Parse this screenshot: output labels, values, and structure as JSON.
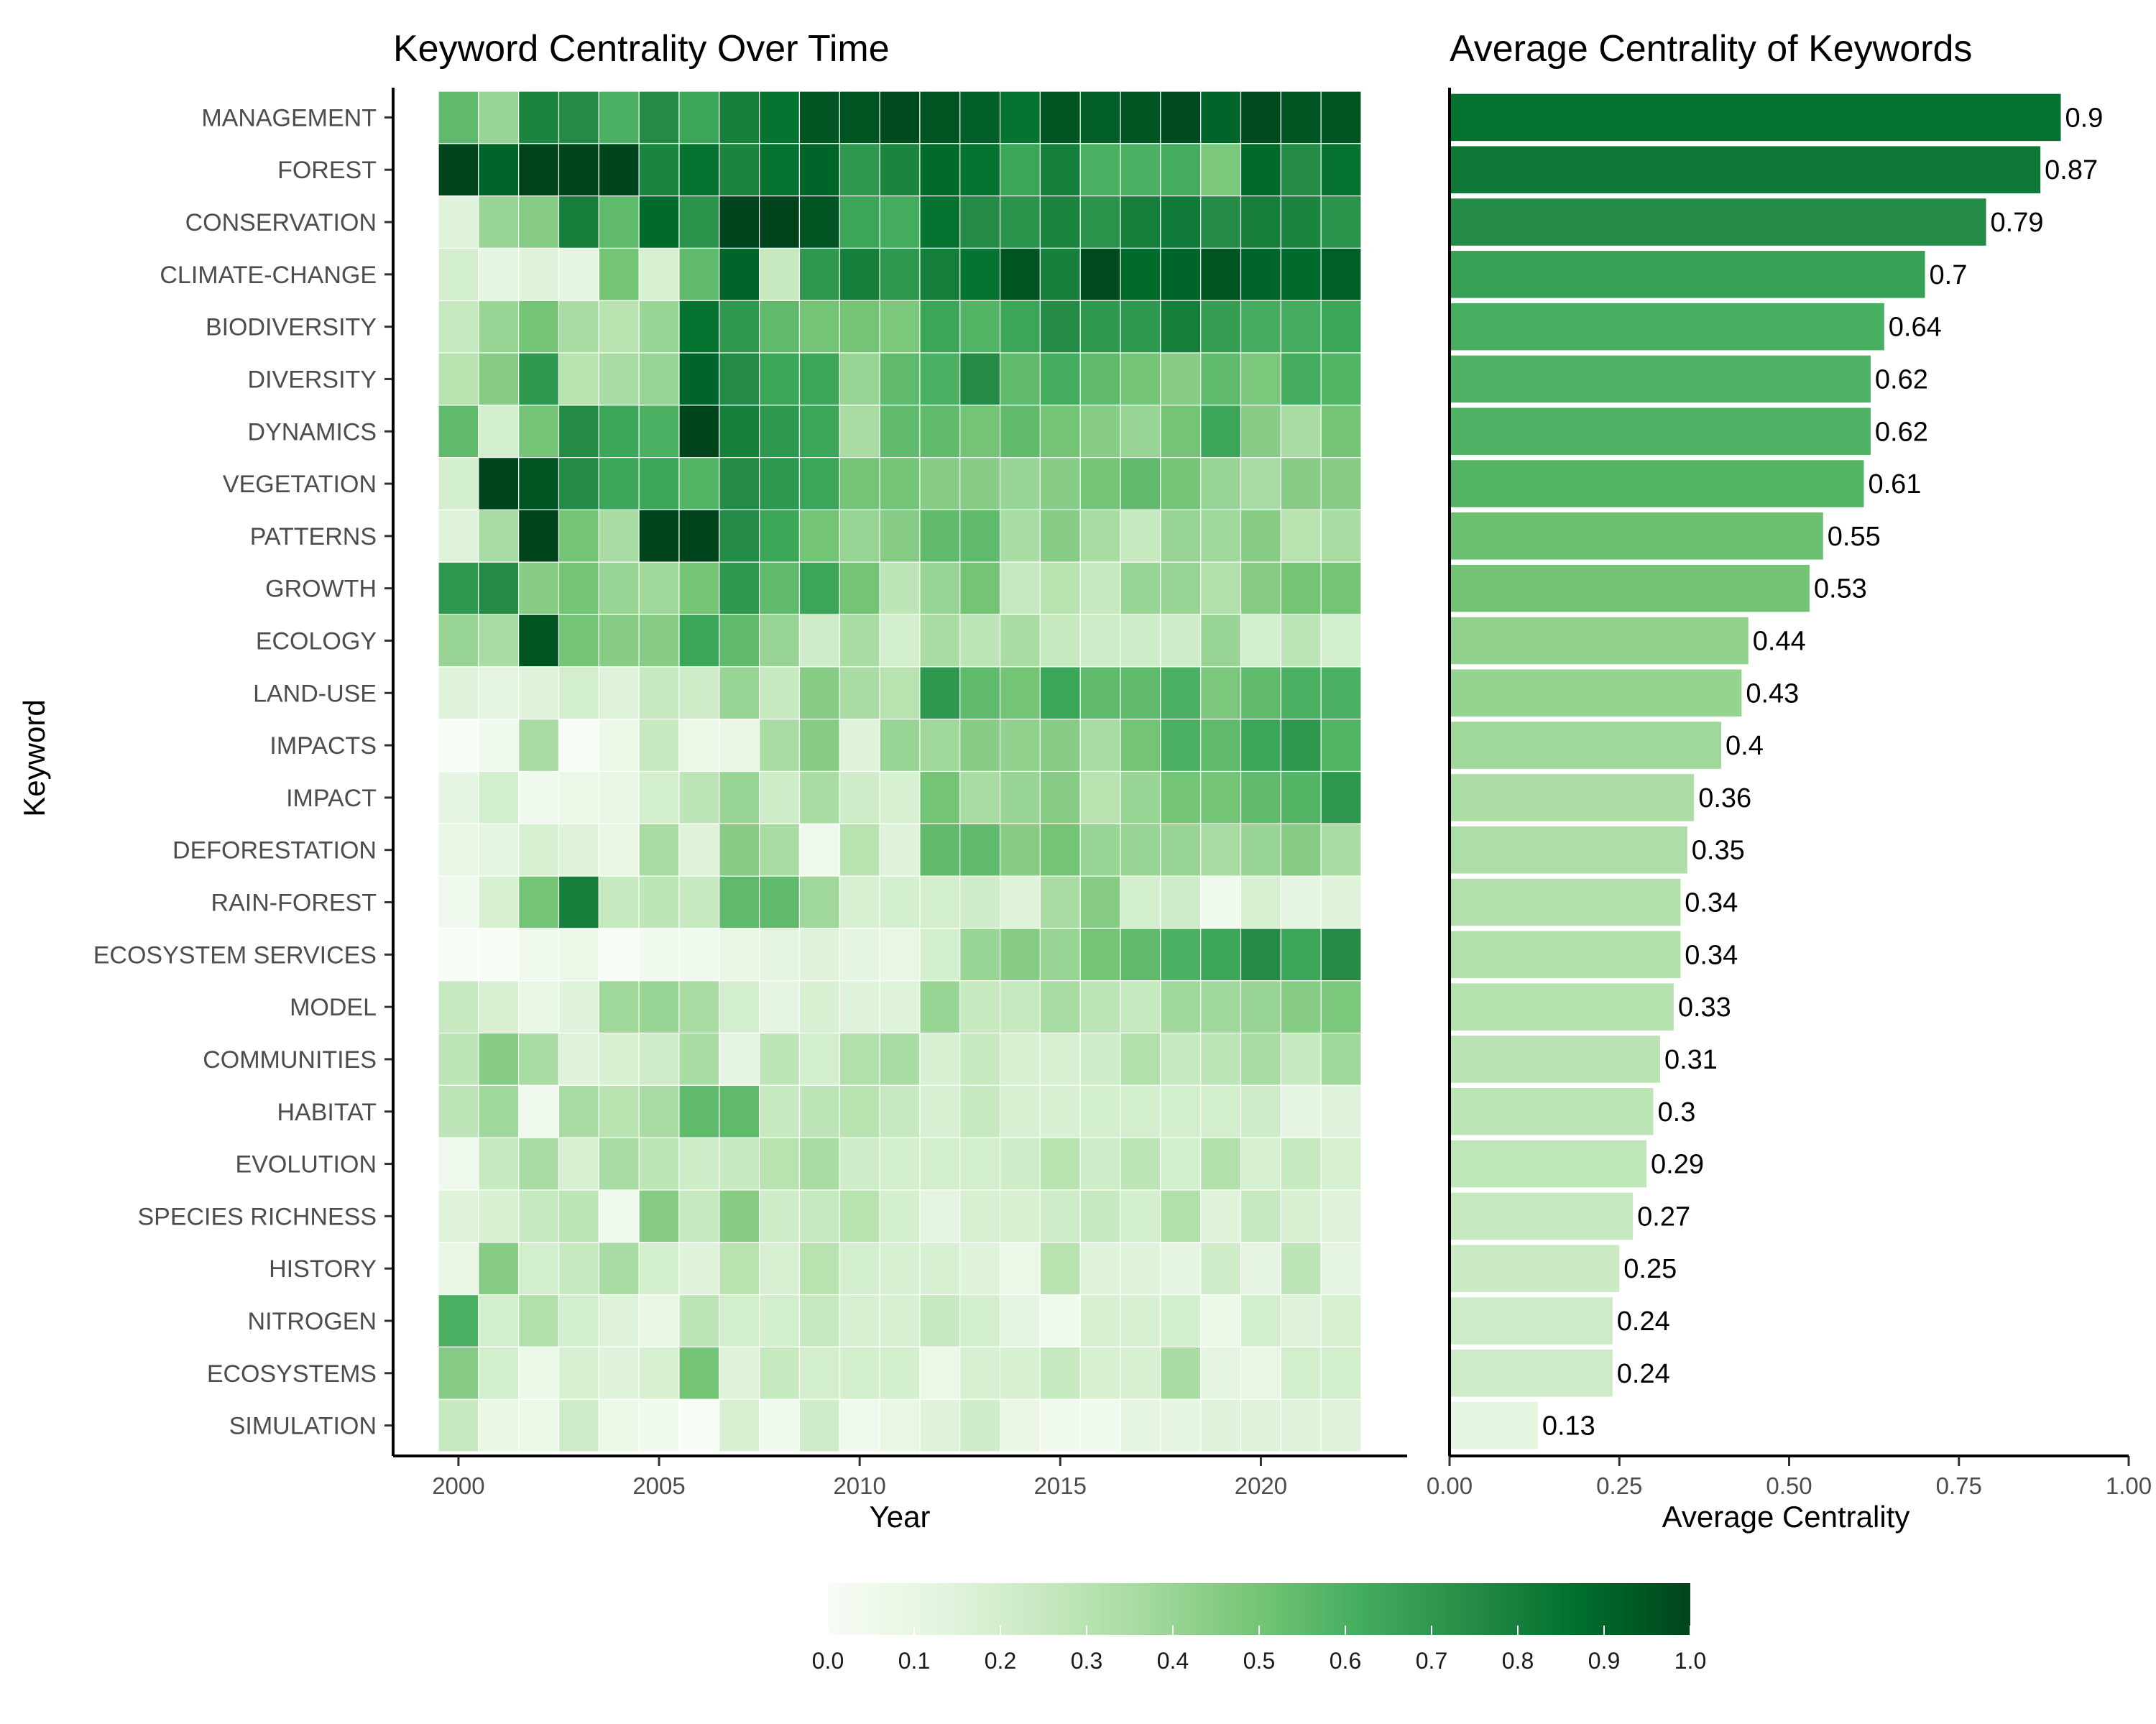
{
  "chart_data": [
    {
      "type": "heatmap",
      "title": "Keyword Centrality Over Time",
      "xlabel": "Year",
      "ylabel": "Keyword",
      "x": [
        2000,
        2001,
        2002,
        2003,
        2004,
        2005,
        2006,
        2007,
        2008,
        2009,
        2010,
        2011,
        2012,
        2013,
        2014,
        2015,
        2016,
        2017,
        2018,
        2019,
        2020,
        2021,
        2022
      ],
      "x_ticks": [
        2000,
        2005,
        2010,
        2015,
        2020
      ],
      "y": [
        "MANAGEMENT",
        "FOREST",
        "CONSERVATION",
        "CLIMATE-CHANGE",
        "BIODIVERSITY",
        "DIVERSITY",
        "DYNAMICS",
        "VEGETATION",
        "PATTERNS",
        "GROWTH",
        "ECOLOGY",
        "LAND-USE",
        "IMPACTS",
        "IMPACT",
        "DEFORESTATION",
        "RAIN-FOREST",
        "ECOSYSTEM SERVICES",
        "MODEL",
        "COMMUNITIES",
        "HABITAT",
        "EVOLUTION",
        "SPECIES RICHNESS",
        "HISTORY",
        "NITROGEN",
        "ECOSYSTEMS",
        "SIMULATION"
      ],
      "values": [
        [
          0.55,
          0.4,
          0.78,
          0.75,
          0.6,
          0.75,
          0.65,
          0.8,
          0.85,
          0.95,
          0.95,
          0.98,
          0.95,
          0.92,
          0.85,
          0.95,
          0.92,
          0.95,
          0.98,
          0.9,
          0.98,
          0.95,
          0.95
        ],
        [
          1.0,
          0.9,
          1.0,
          1.0,
          1.0,
          0.78,
          0.85,
          0.78,
          0.85,
          0.9,
          0.7,
          0.78,
          0.88,
          0.85,
          0.65,
          0.8,
          0.6,
          0.6,
          0.62,
          0.48,
          0.88,
          0.75,
          0.85
        ],
        [
          0.15,
          0.4,
          0.45,
          0.8,
          0.55,
          0.88,
          0.72,
          1.0,
          1.0,
          0.95,
          0.65,
          0.62,
          0.85,
          0.75,
          0.72,
          0.78,
          0.72,
          0.8,
          0.82,
          0.75,
          0.8,
          0.78,
          0.72
        ],
        [
          0.2,
          0.12,
          0.15,
          0.12,
          0.5,
          0.18,
          0.55,
          0.9,
          0.25,
          0.7,
          0.8,
          0.7,
          0.8,
          0.85,
          0.95,
          0.8,
          0.98,
          0.88,
          0.9,
          0.95,
          0.9,
          0.88,
          0.92
        ],
        [
          0.25,
          0.4,
          0.5,
          0.35,
          0.3,
          0.4,
          0.85,
          0.7,
          0.55,
          0.5,
          0.5,
          0.48,
          0.65,
          0.58,
          0.65,
          0.75,
          0.7,
          0.7,
          0.8,
          0.68,
          0.62,
          0.62,
          0.65
        ],
        [
          0.3,
          0.45,
          0.7,
          0.3,
          0.35,
          0.4,
          0.9,
          0.75,
          0.65,
          0.65,
          0.4,
          0.55,
          0.6,
          0.75,
          0.55,
          0.62,
          0.55,
          0.5,
          0.45,
          0.55,
          0.48,
          0.62,
          0.58
        ],
        [
          0.55,
          0.2,
          0.5,
          0.75,
          0.65,
          0.6,
          1.0,
          0.8,
          0.7,
          0.65,
          0.35,
          0.55,
          0.55,
          0.5,
          0.55,
          0.5,
          0.45,
          0.4,
          0.5,
          0.65,
          0.45,
          0.35,
          0.5
        ],
        [
          0.2,
          1.0,
          0.95,
          0.75,
          0.65,
          0.65,
          0.58,
          0.75,
          0.7,
          0.65,
          0.5,
          0.5,
          0.45,
          0.45,
          0.4,
          0.45,
          0.5,
          0.55,
          0.5,
          0.4,
          0.35,
          0.45,
          0.45
        ],
        [
          0.15,
          0.35,
          1.0,
          0.5,
          0.35,
          1.0,
          1.0,
          0.75,
          0.65,
          0.5,
          0.4,
          0.45,
          0.55,
          0.55,
          0.35,
          0.45,
          0.35,
          0.25,
          0.4,
          0.38,
          0.45,
          0.3,
          0.35
        ],
        [
          0.7,
          0.75,
          0.45,
          0.5,
          0.4,
          0.38,
          0.5,
          0.7,
          0.55,
          0.65,
          0.5,
          0.28,
          0.4,
          0.5,
          0.25,
          0.3,
          0.25,
          0.4,
          0.4,
          0.32,
          0.45,
          0.5,
          0.5
        ],
        [
          0.4,
          0.35,
          0.95,
          0.5,
          0.45,
          0.45,
          0.65,
          0.55,
          0.4,
          0.22,
          0.35,
          0.2,
          0.35,
          0.28,
          0.35,
          0.25,
          0.22,
          0.22,
          0.22,
          0.4,
          0.2,
          0.28,
          0.2
        ],
        [
          0.15,
          0.12,
          0.15,
          0.2,
          0.15,
          0.25,
          0.22,
          0.4,
          0.25,
          0.45,
          0.35,
          0.3,
          0.7,
          0.55,
          0.5,
          0.65,
          0.55,
          0.55,
          0.6,
          0.48,
          0.55,
          0.6,
          0.6
        ],
        [
          0.0,
          0.05,
          0.35,
          0.0,
          0.08,
          0.25,
          0.08,
          0.1,
          0.35,
          0.45,
          0.15,
          0.4,
          0.38,
          0.45,
          0.42,
          0.45,
          0.35,
          0.5,
          0.6,
          0.55,
          0.65,
          0.7,
          0.58
        ],
        [
          0.12,
          0.2,
          0.05,
          0.08,
          0.1,
          0.2,
          0.28,
          0.4,
          0.22,
          0.35,
          0.22,
          0.18,
          0.5,
          0.35,
          0.4,
          0.45,
          0.3,
          0.4,
          0.5,
          0.5,
          0.55,
          0.58,
          0.7
        ],
        [
          0.1,
          0.12,
          0.18,
          0.15,
          0.1,
          0.35,
          0.15,
          0.45,
          0.35,
          0.05,
          0.3,
          0.15,
          0.55,
          0.55,
          0.45,
          0.5,
          0.4,
          0.4,
          0.4,
          0.35,
          0.4,
          0.45,
          0.35
        ],
        [
          0.05,
          0.18,
          0.5,
          0.8,
          0.25,
          0.28,
          0.25,
          0.55,
          0.55,
          0.38,
          0.18,
          0.2,
          0.2,
          0.22,
          0.15,
          0.35,
          0.45,
          0.2,
          0.22,
          0.05,
          0.18,
          0.12,
          0.15
        ],
        [
          0.0,
          0.0,
          0.05,
          0.08,
          0.0,
          0.05,
          0.05,
          0.1,
          0.12,
          0.15,
          0.12,
          0.1,
          0.2,
          0.4,
          0.45,
          0.4,
          0.5,
          0.55,
          0.6,
          0.65,
          0.75,
          0.65,
          0.75
        ],
        [
          0.25,
          0.18,
          0.1,
          0.15,
          0.38,
          0.4,
          0.35,
          0.2,
          0.12,
          0.18,
          0.15,
          0.15,
          0.4,
          0.25,
          0.25,
          0.35,
          0.28,
          0.25,
          0.38,
          0.38,
          0.4,
          0.45,
          0.48
        ],
        [
          0.28,
          0.45,
          0.35,
          0.15,
          0.18,
          0.22,
          0.35,
          0.12,
          0.28,
          0.2,
          0.32,
          0.35,
          0.18,
          0.25,
          0.18,
          0.18,
          0.22,
          0.32,
          0.25,
          0.28,
          0.35,
          0.25,
          0.38
        ],
        [
          0.28,
          0.38,
          0.05,
          0.35,
          0.3,
          0.35,
          0.55,
          0.55,
          0.25,
          0.28,
          0.3,
          0.25,
          0.18,
          0.25,
          0.18,
          0.18,
          0.2,
          0.2,
          0.2,
          0.2,
          0.22,
          0.12,
          0.15
        ],
        [
          0.05,
          0.25,
          0.35,
          0.18,
          0.35,
          0.28,
          0.22,
          0.25,
          0.3,
          0.35,
          0.22,
          0.2,
          0.2,
          0.2,
          0.22,
          0.3,
          0.22,
          0.28,
          0.2,
          0.32,
          0.18,
          0.25,
          0.18
        ],
        [
          0.15,
          0.18,
          0.25,
          0.28,
          0.05,
          0.45,
          0.25,
          0.45,
          0.22,
          0.25,
          0.3,
          0.2,
          0.12,
          0.18,
          0.18,
          0.22,
          0.25,
          0.2,
          0.32,
          0.15,
          0.25,
          0.18,
          0.15
        ],
        [
          0.1,
          0.45,
          0.2,
          0.25,
          0.35,
          0.2,
          0.15,
          0.3,
          0.18,
          0.3,
          0.2,
          0.18,
          0.18,
          0.15,
          0.08,
          0.3,
          0.15,
          0.15,
          0.12,
          0.22,
          0.12,
          0.28,
          0.12
        ],
        [
          0.6,
          0.2,
          0.32,
          0.2,
          0.15,
          0.1,
          0.28,
          0.2,
          0.2,
          0.25,
          0.18,
          0.18,
          0.25,
          0.2,
          0.12,
          0.05,
          0.18,
          0.18,
          0.2,
          0.08,
          0.2,
          0.15,
          0.18
        ],
        [
          0.45,
          0.2,
          0.08,
          0.18,
          0.15,
          0.18,
          0.5,
          0.15,
          0.25,
          0.2,
          0.2,
          0.2,
          0.08,
          0.18,
          0.18,
          0.25,
          0.18,
          0.18,
          0.35,
          0.12,
          0.1,
          0.2,
          0.2
        ],
        [
          0.25,
          0.1,
          0.08,
          0.22,
          0.08,
          0.05,
          0.0,
          0.18,
          0.05,
          0.22,
          0.05,
          0.1,
          0.15,
          0.22,
          0.1,
          0.05,
          0.05,
          0.12,
          0.12,
          0.15,
          0.15,
          0.15,
          0.15
        ]
      ],
      "colorbar": {
        "min": 0.0,
        "max": 1.0,
        "ticks": [
          "0.0",
          "0.1",
          "0.2",
          "0.3",
          "0.4",
          "0.5",
          "0.6",
          "0.7",
          "0.8",
          "0.9",
          "1.0"
        ],
        "placement": "bottom"
      },
      "colors": {
        "low": "#f7fcf5",
        "mid": "#a1d99b",
        "high": "#00441b"
      },
      "grid": false
    },
    {
      "type": "bar",
      "orientation": "horizontal",
      "title": "Average Centrality of Keywords",
      "xlabel": "Average Centrality",
      "ylabel": "",
      "categories": [
        "MANAGEMENT",
        "FOREST",
        "CONSERVATION",
        "CLIMATE-CHANGE",
        "BIODIVERSITY",
        "DIVERSITY",
        "DYNAMICS",
        "VEGETATION",
        "PATTERNS",
        "GROWTH",
        "ECOLOGY",
        "LAND-USE",
        "IMPACTS",
        "IMPACT",
        "DEFORESTATION",
        "RAIN-FOREST",
        "ECOSYSTEM SERVICES",
        "MODEL",
        "COMMUNITIES",
        "HABITAT",
        "EVOLUTION",
        "SPECIES RICHNESS",
        "HISTORY",
        "NITROGEN",
        "ECOSYSTEMS",
        "SIMULATION"
      ],
      "values": [
        0.9,
        0.87,
        0.79,
        0.7,
        0.64,
        0.62,
        0.62,
        0.61,
        0.55,
        0.53,
        0.44,
        0.43,
        0.4,
        0.36,
        0.35,
        0.34,
        0.34,
        0.33,
        0.31,
        0.3,
        0.29,
        0.27,
        0.25,
        0.24,
        0.24,
        0.13
      ],
      "labels": [
        "0.9",
        "0.87",
        "0.79",
        "0.7",
        "0.64",
        "0.62",
        "0.62",
        "0.61",
        "0.55",
        "0.53",
        "0.44",
        "0.43",
        "0.4",
        "0.36",
        "0.35",
        "0.34",
        "0.34",
        "0.33",
        "0.31",
        "0.3",
        "0.29",
        "0.27",
        "0.25",
        "0.24",
        "0.24",
        "0.13"
      ],
      "xlim": [
        0,
        1
      ],
      "x_ticks": [
        "0.00",
        "0.25",
        "0.50",
        "0.75",
        "1.00"
      ],
      "grid": false
    }
  ]
}
